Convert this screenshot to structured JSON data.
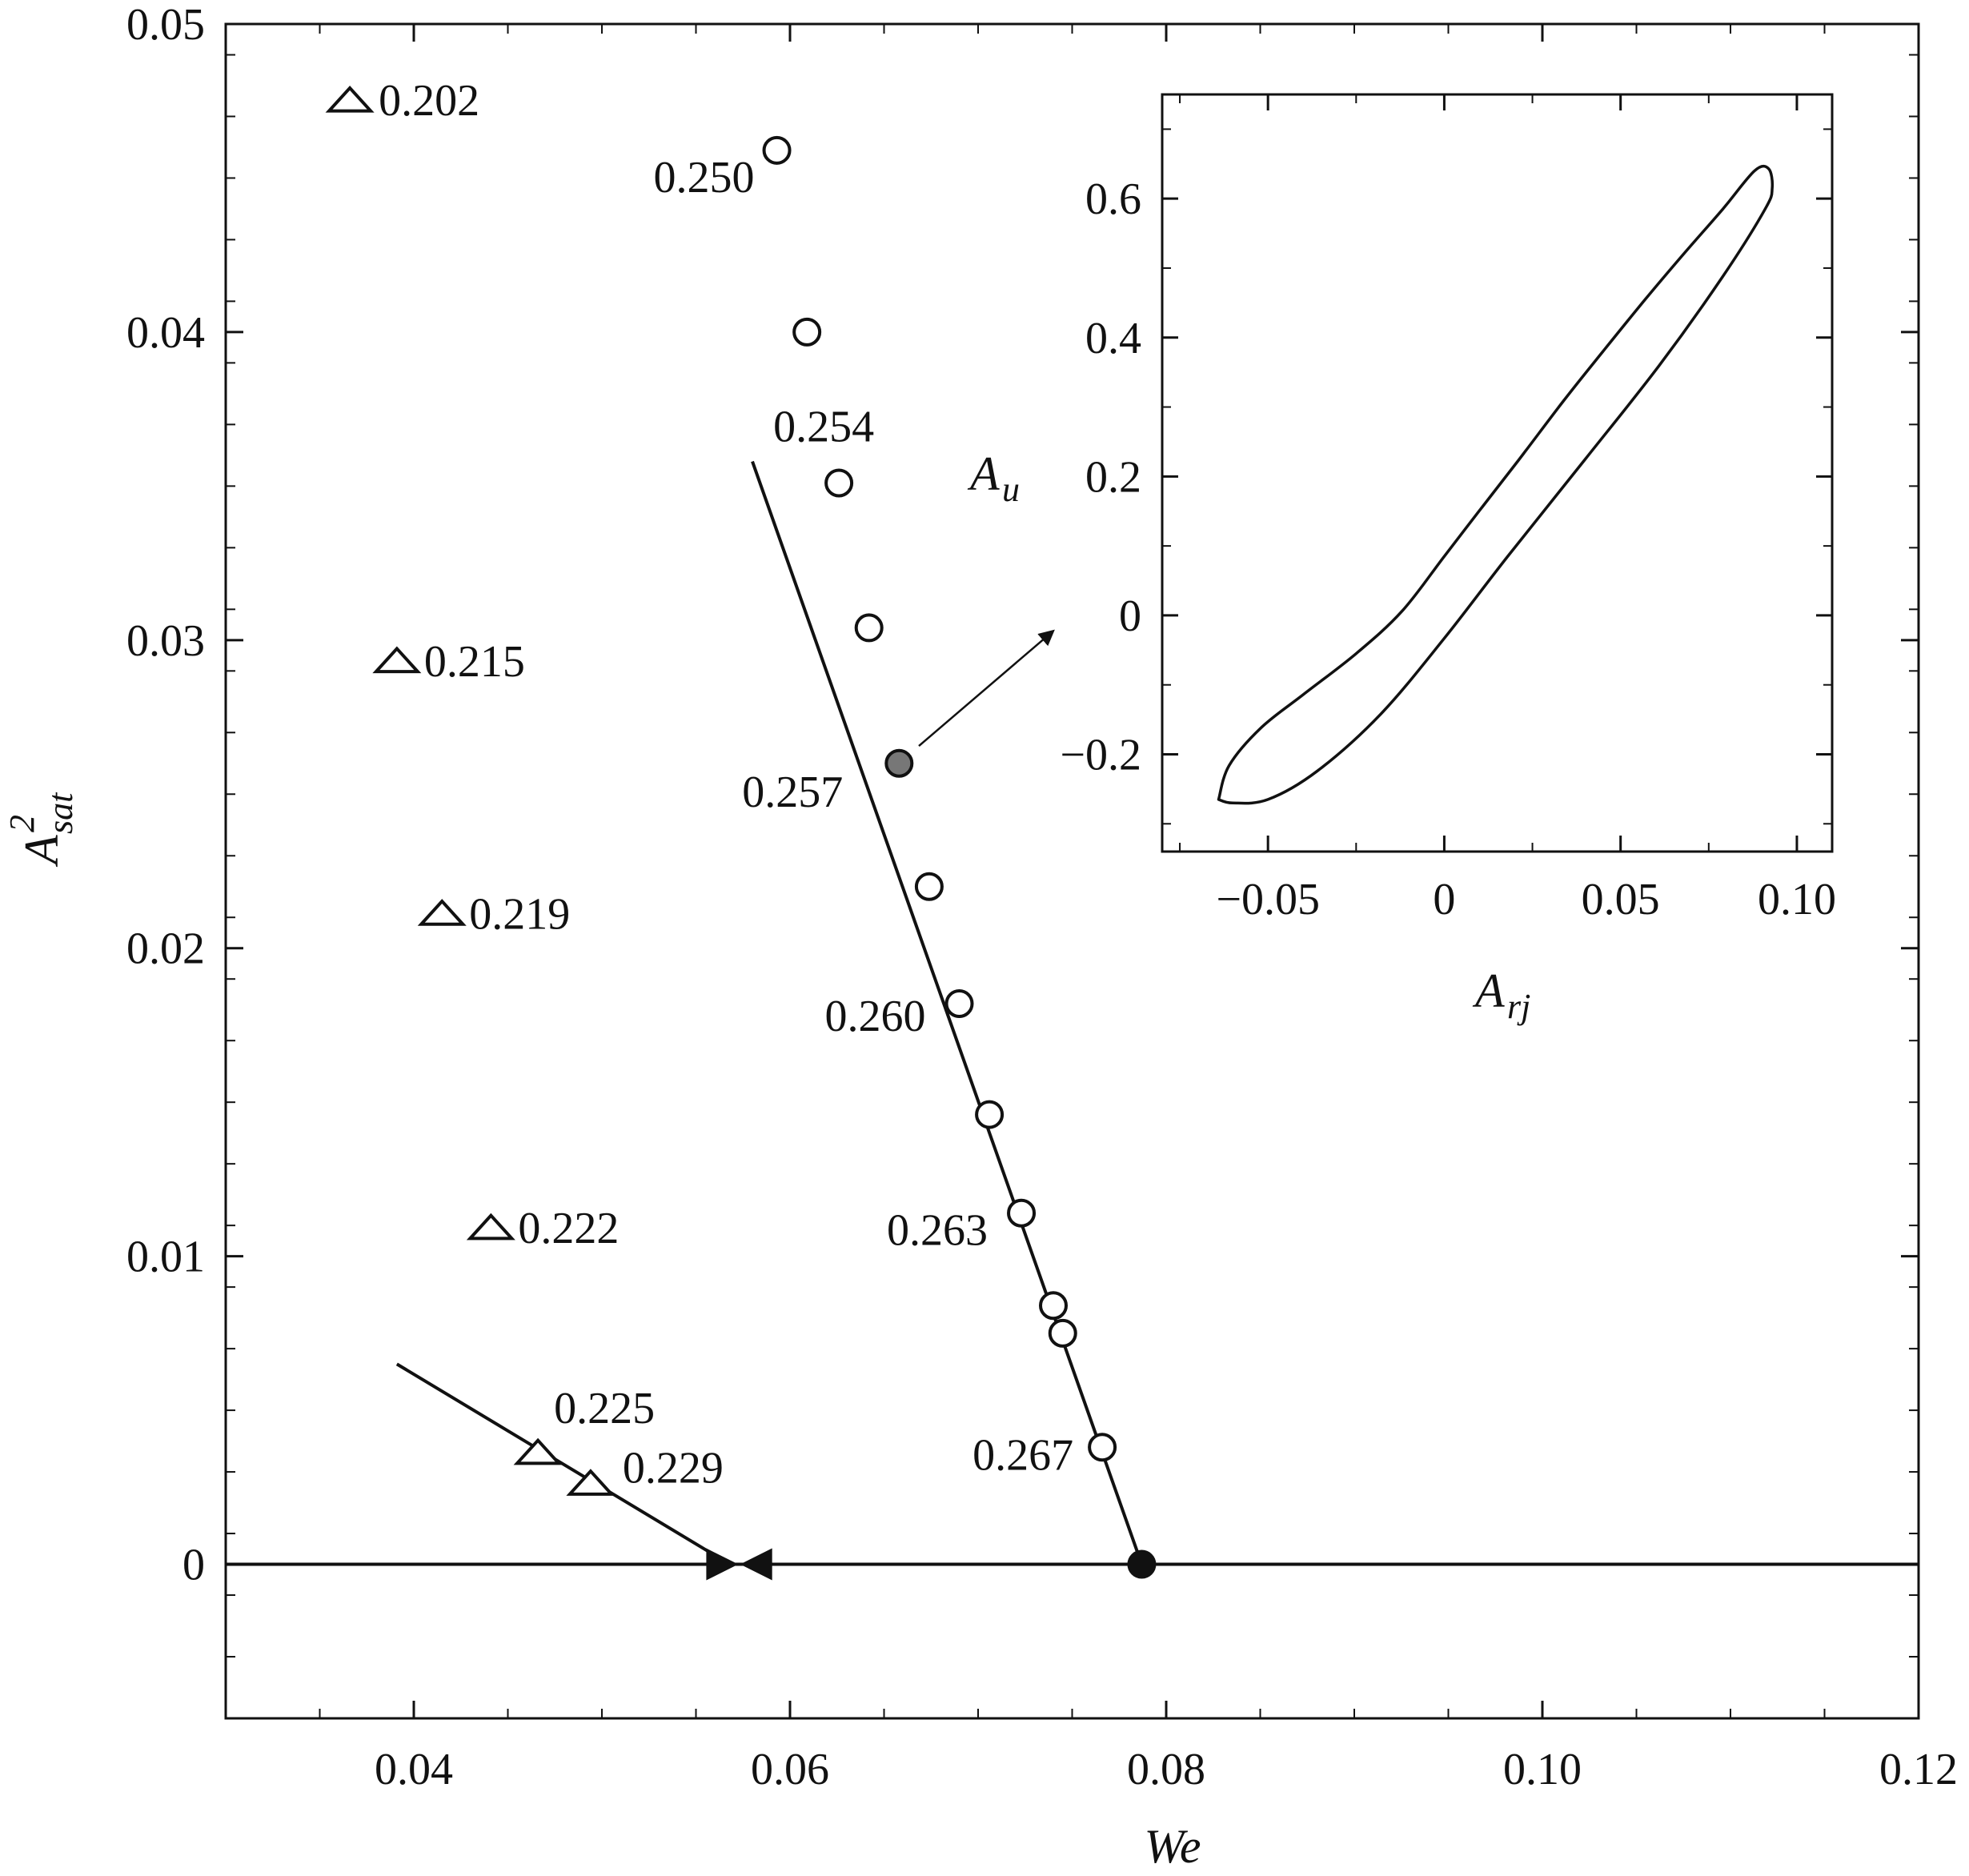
{
  "chart_data": [
    {
      "type": "scatter",
      "xlabel": "We",
      "ylabel": "A",
      "ylabel_superscript": "2",
      "ylabel_subscript": "sat",
      "xlim": [
        0.03,
        0.12
      ],
      "ylim": [
        -0.005,
        0.05
      ],
      "x_ticks": [
        {
          "value": 0.04,
          "label": "0.04"
        },
        {
          "value": 0.06,
          "label": "0.06"
        },
        {
          "value": 0.08,
          "label": "0.08"
        },
        {
          "value": 0.1,
          "label": "0.10"
        },
        {
          "value": 0.12,
          "label": "0.12"
        }
      ],
      "y_ticks": [
        {
          "value": 0,
          "label": "0"
        },
        {
          "value": 0.01,
          "label": "0.01"
        },
        {
          "value": 0.02,
          "label": "0.02"
        },
        {
          "value": 0.03,
          "label": "0.03"
        },
        {
          "value": 0.04,
          "label": "0.04"
        },
        {
          "value": 0.05,
          "label": "0.05"
        }
      ],
      "grid": false,
      "series": [
        {
          "marker": "triangle-open",
          "points": [
            {
              "x": 0.0366,
              "y": 0.0475,
              "label": "0.202"
            },
            {
              "x": 0.0391,
              "y": 0.0293,
              "label": "0.215"
            },
            {
              "x": 0.0415,
              "y": 0.0211,
              "label": "0.219"
            },
            {
              "x": 0.0441,
              "y": 0.0109,
              "label": "0.222"
            },
            {
              "x": 0.0466,
              "y": 0.0036,
              "label": "0.225"
            },
            {
              "x": 0.0494,
              "y": 0.0026,
              "label": "0.229"
            }
          ]
        },
        {
          "marker": "circle-open",
          "points": [
            {
              "x": 0.0593,
              "y": 0.0459,
              "label": "0.250"
            },
            {
              "x": 0.0609,
              "y": 0.04,
              "label": ""
            },
            {
              "x": 0.0626,
              "y": 0.0351,
              "label": "0.254"
            },
            {
              "x": 0.0642,
              "y": 0.0304,
              "label": ""
            },
            {
              "x": 0.0658,
              "y": 0.026,
              "label": "0.257",
              "highlight": true
            },
            {
              "x": 0.0674,
              "y": 0.022,
              "label": ""
            },
            {
              "x": 0.069,
              "y": 0.0182,
              "label": "0.260"
            },
            {
              "x": 0.0706,
              "y": 0.0146,
              "label": ""
            },
            {
              "x": 0.0723,
              "y": 0.0114,
              "label": "0.263"
            },
            {
              "x": 0.074,
              "y": 0.0084,
              "label": ""
            },
            {
              "x": 0.0745,
              "y": 0.0075,
              "label": ""
            },
            {
              "x": 0.0766,
              "y": 0.0038,
              "label": "0.267"
            }
          ]
        }
      ],
      "lines": [
        {
          "name": "baseline",
          "points": [
            [
              0.03,
              0
            ],
            [
              0.12,
              0
            ]
          ]
        },
        {
          "name": "triangle-fit",
          "points": [
            [
              0.0391,
              0.0065
            ],
            [
              0.0568,
              0
            ]
          ]
        },
        {
          "name": "circle-fit",
          "points": [
            [
              0.058,
              0.0358
            ],
            [
              0.0787,
              0
            ]
          ]
        }
      ],
      "special_markers": [
        {
          "shape": "filled-circle",
          "x": 0.0787,
          "y": 0
        },
        {
          "shape": "filled-triangle-right",
          "x": 0.0564,
          "y": 0
        },
        {
          "shape": "filled-triangle-left",
          "x": 0.0582,
          "y": 0
        }
      ],
      "arrow": {
        "from": {
          "x": 0.066,
          "y": 0.0262
        },
        "to": {
          "x": 0.074,
          "y": 0.0303
        }
      }
    },
    {
      "type": "line",
      "inset": true,
      "xlabel": "A",
      "xlabel_subscript": "rj",
      "ylabel": "A",
      "ylabel_subscript": "u",
      "xlim": [
        -0.08,
        0.11
      ],
      "ylim": [
        -0.34,
        0.75
      ],
      "x_ticks": [
        {
          "value": -0.05,
          "label": "−0.05"
        },
        {
          "value": 0,
          "label": "0"
        },
        {
          "value": 0.05,
          "label": "0.05"
        },
        {
          "value": 0.1,
          "label": "0.10"
        }
      ],
      "y_ticks": [
        {
          "value": -0.2,
          "label": "−0.2"
        },
        {
          "value": 0,
          "label": "0"
        },
        {
          "value": 0.2,
          "label": "0.2"
        },
        {
          "value": 0.4,
          "label": "0.4"
        },
        {
          "value": 0.6,
          "label": "0.6"
        }
      ],
      "grid": false,
      "series": [
        {
          "closed": true,
          "points": [
            [
              -0.064,
              -0.265
            ],
            [
              -0.061,
              -0.216
            ],
            [
              -0.052,
              -0.162
            ],
            [
              -0.04,
              -0.114
            ],
            [
              -0.025,
              -0.055
            ],
            [
              -0.012,
              0.006
            ],
            [
              0.0,
              0.085
            ],
            [
              0.01,
              0.151
            ],
            [
              0.021,
              0.223
            ],
            [
              0.034,
              0.31
            ],
            [
              0.045,
              0.38
            ],
            [
              0.057,
              0.455
            ],
            [
              0.068,
              0.521
            ],
            [
              0.079,
              0.585
            ],
            [
              0.088,
              0.64
            ],
            [
              0.092,
              0.643
            ],
            [
              0.093,
              0.615
            ],
            [
              0.091,
              0.585
            ],
            [
              0.079,
              0.488
            ],
            [
              0.061,
              0.36
            ],
            [
              0.04,
              0.225
            ],
            [
              0.018,
              0.085
            ],
            [
              0.0,
              -0.033
            ],
            [
              -0.018,
              -0.142
            ],
            [
              -0.036,
              -0.224
            ],
            [
              -0.05,
              -0.265
            ],
            [
              -0.06,
              -0.27
            ],
            [
              -0.064,
              -0.265
            ]
          ]
        }
      ]
    }
  ]
}
